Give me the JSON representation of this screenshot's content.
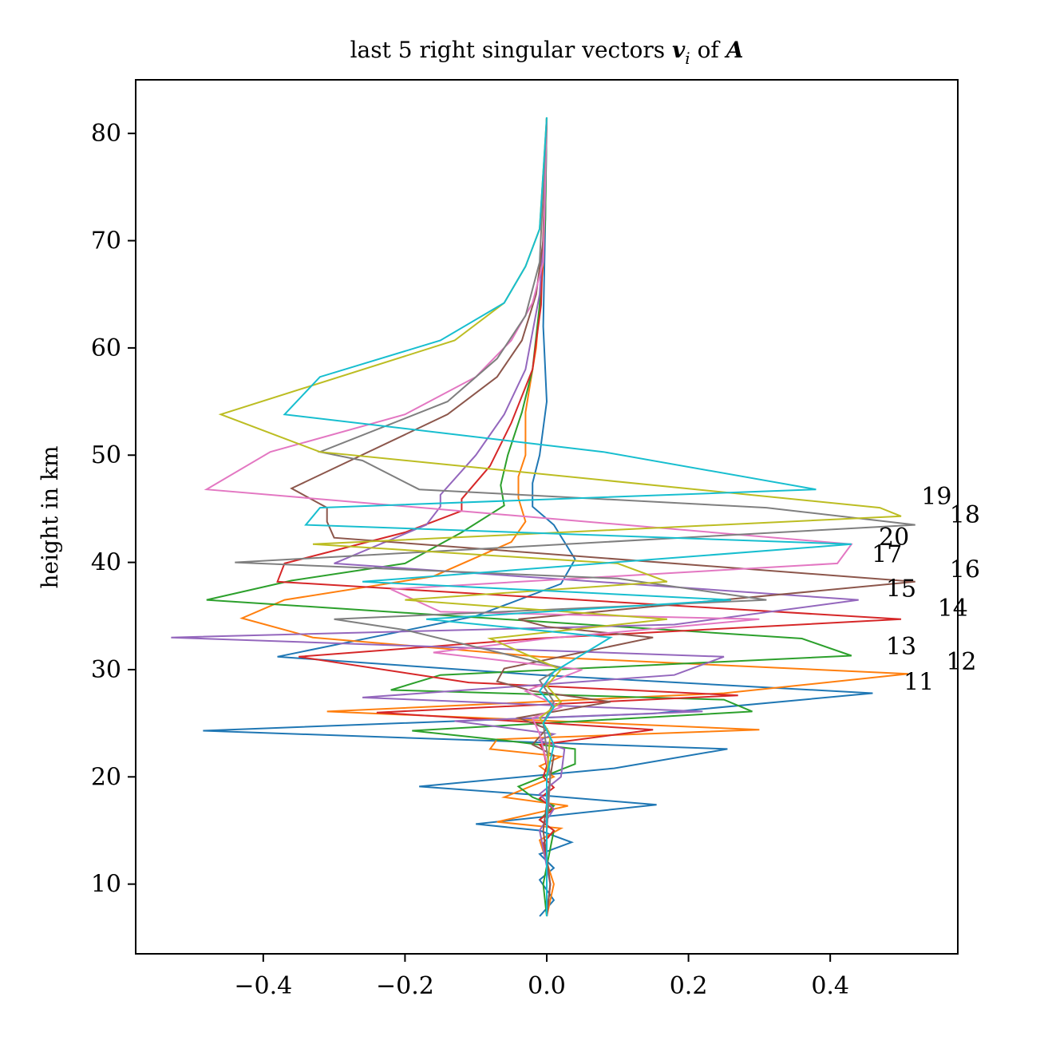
{
  "chart_data": {
    "type": "line",
    "title": "last 5 right singular vectors v_i of A",
    "title_parts": {
      "pre": "last 5 right singular vectors ",
      "v": "v",
      "sub": "i",
      "of": " of ",
      "A": "A"
    },
    "xlabel": "",
    "ylabel": "height in km",
    "xlim": [
      -0.58,
      0.58
    ],
    "ylim": [
      3.5,
      85.0
    ],
    "xticks": [
      -0.4,
      -0.2,
      0.0,
      0.2,
      0.4
    ],
    "xtick_labels": [
      "−0.4",
      "−0.2",
      "0.0",
      "0.2",
      "0.4"
    ],
    "yticks": [
      10,
      20,
      30,
      40,
      50,
      60,
      70,
      80
    ],
    "ytick_labels": [
      "10",
      "20",
      "30",
      "40",
      "50",
      "60",
      "70",
      "80"
    ],
    "grid": false,
    "series": [
      {
        "color": "#1f77b4",
        "points": [
          [
            -0.01,
            7
          ],
          [
            0.01,
            8.5
          ],
          [
            -0.01,
            10.4
          ],
          [
            0.01,
            11.5
          ],
          [
            -0.01,
            12.8
          ],
          [
            0.035,
            13.9
          ],
          [
            -0.01,
            15
          ],
          [
            -0.1,
            15.6
          ],
          [
            0.155,
            17.4
          ],
          [
            -0.01,
            18.3
          ],
          [
            -0.18,
            19.1
          ],
          [
            0.095,
            20.8
          ],
          [
            0.255,
            22.6
          ],
          [
            -0.485,
            24.3
          ],
          [
            0.15,
            25.9
          ],
          [
            0.46,
            27.8
          ],
          [
            -0.01,
            29.5
          ],
          [
            -0.38,
            31.2
          ],
          [
            -0.24,
            33.1
          ],
          [
            -0.1,
            35
          ],
          [
            0.02,
            38
          ],
          [
            0.04,
            40.3
          ],
          [
            0.01,
            43.5
          ],
          [
            -0.02,
            45.2
          ],
          [
            -0.02,
            47.4
          ],
          [
            -0.01,
            50
          ],
          [
            0.0,
            55
          ],
          [
            -0.005,
            62
          ],
          [
            -0.002,
            72
          ],
          [
            0.0,
            81.5
          ]
        ]
      },
      {
        "color": "#ff7f0e",
        "points": [
          [
            0.0,
            7
          ],
          [
            0.01,
            10
          ],
          [
            -0.01,
            14.1
          ],
          [
            0.02,
            15.2
          ],
          [
            -0.07,
            15.8
          ],
          [
            0.03,
            17.3
          ],
          [
            -0.06,
            18.1
          ],
          [
            0.01,
            20
          ],
          [
            -0.01,
            21
          ],
          [
            0.02,
            21.9
          ],
          [
            -0.08,
            22.6
          ],
          [
            -0.07,
            23.5
          ],
          [
            0.3,
            24.4
          ],
          [
            -0.31,
            26.1
          ],
          [
            0.25,
            27.8
          ],
          [
            0.51,
            29.6
          ],
          [
            -0.01,
            31.2
          ],
          [
            -0.33,
            33
          ],
          [
            -0.43,
            34.8
          ],
          [
            -0.37,
            36.5
          ],
          [
            -0.16,
            38.7
          ],
          [
            -0.05,
            41.9
          ],
          [
            -0.03,
            43.8
          ],
          [
            -0.04,
            46
          ],
          [
            -0.04,
            48
          ],
          [
            -0.03,
            50
          ],
          [
            -0.03,
            54
          ],
          [
            -0.015,
            60
          ],
          [
            -0.005,
            68
          ],
          [
            0.0,
            81.5
          ]
        ]
      },
      {
        "color": "#2ca02c",
        "points": [
          [
            0.0,
            7
          ],
          [
            -0.005,
            10
          ],
          [
            0.01,
            15
          ],
          [
            -0.01,
            16
          ],
          [
            0.01,
            17.3
          ],
          [
            -0.02,
            18.1
          ],
          [
            -0.04,
            19.1
          ],
          [
            0.04,
            21.2
          ],
          [
            0.04,
            22.6
          ],
          [
            -0.06,
            23.4
          ],
          [
            -0.19,
            24.3
          ],
          [
            0.29,
            26.1
          ],
          [
            0.25,
            27.2
          ],
          [
            -0.22,
            28.1
          ],
          [
            -0.15,
            29.5
          ],
          [
            0.43,
            31.3
          ],
          [
            0.36,
            32.9
          ],
          [
            -0.48,
            36.5
          ],
          [
            -0.36,
            38.3
          ],
          [
            -0.2,
            39.9
          ],
          [
            -0.12,
            42.8
          ],
          [
            -0.06,
            45.3
          ],
          [
            -0.065,
            47.2
          ],
          [
            -0.055,
            50
          ],
          [
            -0.035,
            54
          ],
          [
            -0.02,
            58
          ],
          [
            -0.01,
            64
          ],
          [
            -0.002,
            72
          ],
          [
            0.0,
            81.5
          ]
        ]
      },
      {
        "color": "#d62728",
        "points": [
          [
            0.0,
            7
          ],
          [
            0.005,
            10
          ],
          [
            -0.005,
            13.8
          ],
          [
            0.01,
            15
          ],
          [
            -0.01,
            16
          ],
          [
            0.01,
            17
          ],
          [
            -0.01,
            18
          ],
          [
            0.01,
            19
          ],
          [
            -0.005,
            20
          ],
          [
            0.0,
            21
          ],
          [
            -0.005,
            22.6
          ],
          [
            -0.01,
            23
          ],
          [
            0.15,
            24.4
          ],
          [
            -0.24,
            26
          ],
          [
            0.27,
            27.6
          ],
          [
            -0.11,
            28.8
          ],
          [
            -0.35,
            31.2
          ],
          [
            -0.015,
            32.9
          ],
          [
            0.5,
            34.7
          ],
          [
            -0.38,
            38.2
          ],
          [
            -0.37,
            39.9
          ],
          [
            -0.2,
            42.8
          ],
          [
            -0.12,
            44.8
          ],
          [
            -0.12,
            45.9
          ],
          [
            -0.08,
            49
          ],
          [
            -0.05,
            53
          ],
          [
            -0.02,
            58
          ],
          [
            -0.008,
            64
          ],
          [
            0.0,
            81.5
          ]
        ]
      },
      {
        "color": "#9467bd",
        "points": [
          [
            0.0,
            7
          ],
          [
            0.005,
            10
          ],
          [
            -0.01,
            15
          ],
          [
            0.01,
            17
          ],
          [
            -0.01,
            18.4
          ],
          [
            0.02,
            20
          ],
          [
            0.025,
            22.6
          ],
          [
            -0.01,
            23.4
          ],
          [
            0.01,
            24
          ],
          [
            -0.13,
            25.2
          ],
          [
            0.22,
            26.1
          ],
          [
            -0.26,
            27.4
          ],
          [
            0.18,
            29.5
          ],
          [
            0.25,
            31.2
          ],
          [
            -0.53,
            33
          ],
          [
            0.18,
            34.2
          ],
          [
            0.44,
            36.5
          ],
          [
            -0.3,
            39.9
          ],
          [
            -0.17,
            43.5
          ],
          [
            -0.15,
            45.2
          ],
          [
            -0.15,
            46.3
          ],
          [
            -0.1,
            50
          ],
          [
            -0.06,
            53.8
          ],
          [
            -0.03,
            58
          ],
          [
            -0.01,
            65
          ],
          [
            -0.003,
            72
          ],
          [
            0.0,
            81.5
          ]
        ]
      },
      {
        "color": "#8c564b",
        "points": [
          [
            0.0,
            7
          ],
          [
            0.005,
            10
          ],
          [
            -0.005,
            15
          ],
          [
            0.005,
            20
          ],
          [
            0.01,
            22
          ],
          [
            -0.02,
            23
          ],
          [
            0.0,
            24.5
          ],
          [
            -0.04,
            25.5
          ],
          [
            0.09,
            27
          ],
          [
            -0.02,
            28
          ],
          [
            -0.07,
            28.9
          ],
          [
            -0.06,
            30.1
          ],
          [
            0.15,
            33
          ],
          [
            0.0,
            34
          ],
          [
            -0.04,
            34.7
          ],
          [
            0.52,
            38.2
          ],
          [
            -0.3,
            42.3
          ],
          [
            -0.31,
            43.8
          ],
          [
            -0.31,
            45.1
          ],
          [
            -0.36,
            46.9
          ],
          [
            -0.14,
            53.8
          ],
          [
            -0.07,
            57.3
          ],
          [
            -0.035,
            60.7
          ],
          [
            -0.015,
            65
          ],
          [
            -0.005,
            70
          ],
          [
            0.0,
            81.5
          ]
        ]
      },
      {
        "color": "#e377c2",
        "points": [
          [
            0.0,
            7
          ],
          [
            0.0,
            15
          ],
          [
            0.005,
            20
          ],
          [
            -0.01,
            24
          ],
          [
            -0.02,
            25.5
          ],
          [
            0.02,
            26.5
          ],
          [
            -0.03,
            28
          ],
          [
            0.05,
            30
          ],
          [
            -0.16,
            31.6
          ],
          [
            0.0,
            32.9
          ],
          [
            0.3,
            34.7
          ],
          [
            -0.15,
            35.4
          ],
          [
            -0.22,
            37.5
          ],
          [
            0.41,
            39.9
          ],
          [
            0.43,
            41.7
          ],
          [
            -0.48,
            46.8
          ],
          [
            -0.39,
            50.3
          ],
          [
            -0.2,
            53.8
          ],
          [
            -0.1,
            57.3
          ],
          [
            -0.05,
            60.7
          ],
          [
            -0.02,
            64.2
          ],
          [
            -0.005,
            68
          ],
          [
            0.0,
            81.5
          ]
        ]
      },
      {
        "color": "#7f7f7f",
        "points": [
          [
            0.0,
            7
          ],
          [
            0.0,
            15
          ],
          [
            0.005,
            20
          ],
          [
            -0.005,
            25
          ],
          [
            0.01,
            27
          ],
          [
            -0.01,
            29
          ],
          [
            0.02,
            30.2
          ],
          [
            -0.2,
            33.7
          ],
          [
            -0.3,
            34.7
          ],
          [
            0.31,
            36.5
          ],
          [
            0.1,
            38.5
          ],
          [
            -0.44,
            40
          ],
          [
            0.52,
            43.5
          ],
          [
            0.31,
            45.1
          ],
          [
            -0.18,
            46.8
          ],
          [
            -0.26,
            49.5
          ],
          [
            -0.32,
            50.3
          ],
          [
            -0.14,
            55
          ],
          [
            -0.07,
            59
          ],
          [
            -0.03,
            63
          ],
          [
            -0.01,
            68
          ],
          [
            0.0,
            81.5
          ]
        ]
      },
      {
        "color": "#bcbd22",
        "points": [
          [
            0.0,
            7
          ],
          [
            0.0,
            20
          ],
          [
            0.005,
            24
          ],
          [
            -0.01,
            25.5
          ],
          [
            0.02,
            27
          ],
          [
            0.0,
            28.5
          ],
          [
            0.02,
            30
          ],
          [
            -0.08,
            32.9
          ],
          [
            0.17,
            34.7
          ],
          [
            -0.2,
            36.5
          ],
          [
            0.17,
            38.2
          ],
          [
            0.1,
            39.9
          ],
          [
            -0.33,
            41.7
          ],
          [
            0.5,
            44.3
          ],
          [
            0.47,
            45.1
          ],
          [
            -0.32,
            50.3
          ],
          [
            -0.46,
            53.8
          ],
          [
            -0.13,
            60.7
          ],
          [
            -0.06,
            64.2
          ],
          [
            -0.03,
            67.6
          ],
          [
            -0.01,
            71.1
          ],
          [
            0.0,
            81.5
          ]
        ]
      },
      {
        "color": "#17becf",
        "points": [
          [
            0.0,
            7
          ],
          [
            0.0,
            20
          ],
          [
            0.01,
            23
          ],
          [
            -0.005,
            25
          ],
          [
            0.01,
            26.5
          ],
          [
            -0.01,
            28
          ],
          [
            0.01,
            29.8
          ],
          [
            0.09,
            33
          ],
          [
            -0.17,
            34.7
          ],
          [
            0.26,
            36.5
          ],
          [
            -0.26,
            38.2
          ],
          [
            0.43,
            41.7
          ],
          [
            -0.34,
            43.5
          ],
          [
            -0.32,
            45.1
          ],
          [
            0.38,
            46.8
          ],
          [
            0.08,
            50.3
          ],
          [
            -0.37,
            53.8
          ],
          [
            -0.32,
            57.3
          ],
          [
            -0.15,
            60.7
          ],
          [
            -0.06,
            64.2
          ],
          [
            -0.03,
            67.6
          ],
          [
            -0.01,
            71.1
          ],
          [
            0.0,
            81.5
          ]
        ]
      }
    ],
    "annotations": [
      {
        "text": "11",
        "x": 0.525,
        "y": 28.1
      },
      {
        "text": "12",
        "x": 0.585,
        "y": 30.0
      },
      {
        "text": "13",
        "x": 0.5,
        "y": 31.4
      },
      {
        "text": "14",
        "x": 0.573,
        "y": 35.0
      },
      {
        "text": "15",
        "x": 0.5,
        "y": 36.8
      },
      {
        "text": "16",
        "x": 0.59,
        "y": 38.6
      },
      {
        "text": "17",
        "x": 0.48,
        "y": 40.0
      },
      {
        "text": "20",
        "x": 0.49,
        "y": 41.6
      },
      {
        "text": "18",
        "x": 0.59,
        "y": 43.7
      },
      {
        "text": "19",
        "x": 0.55,
        "y": 45.4
      }
    ]
  }
}
